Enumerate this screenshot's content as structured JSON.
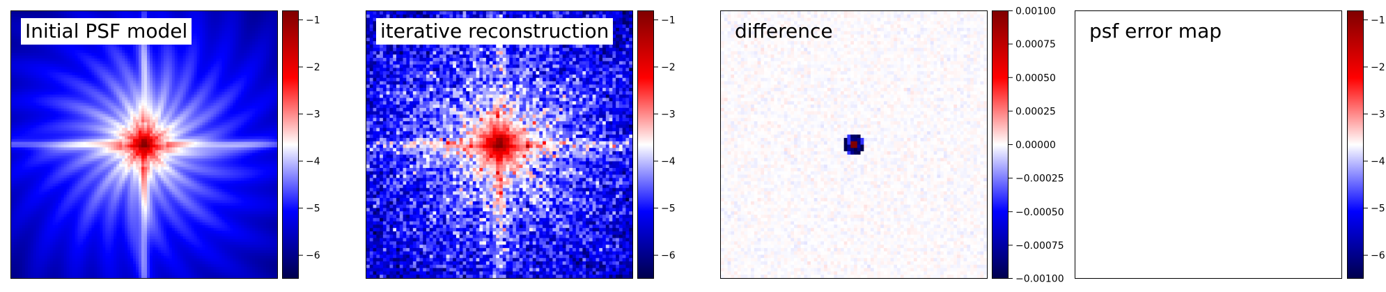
{
  "chart_data": [
    {
      "type": "heatmap",
      "title": "Initial PSF model",
      "pattern": "psf-model",
      "colormap": "seismic",
      "clim": [
        -6.5,
        -0.8
      ],
      "colorbar_ticks": [
        -1,
        -2,
        -3,
        -4,
        -5,
        -6
      ],
      "colorbar_tick_labels": [
        "−1",
        "−2",
        "−3",
        "−4",
        "−5",
        "−6"
      ]
    },
    {
      "type": "heatmap",
      "title": "iterative reconstruction",
      "pattern": "psf-noisy",
      "colormap": "seismic",
      "clim": [
        -6.5,
        -0.8
      ],
      "colorbar_ticks": [
        -1,
        -2,
        -3,
        -4,
        -5,
        -6
      ],
      "colorbar_tick_labels": [
        "−1",
        "−2",
        "−3",
        "−4",
        "−5",
        "−6"
      ]
    },
    {
      "type": "heatmap",
      "title": "difference",
      "pattern": "difference",
      "colormap": "seismic",
      "clim": [
        -0.001,
        0.001
      ],
      "colorbar_ticks": [
        0.001,
        0.00075,
        0.0005,
        0.00025,
        0,
        -0.00025,
        -0.0005,
        -0.00075,
        -0.001
      ],
      "colorbar_tick_labels": [
        "0.00100",
        "0.00075",
        "0.00050",
        "0.00025",
        "0.00000",
        "−0.00025",
        "−0.00050",
        "−0.00075",
        "−0.00100"
      ]
    },
    {
      "type": "heatmap",
      "title": "psf error map",
      "pattern": "empty",
      "colormap": "seismic",
      "clim": [
        -6.5,
        -0.8
      ],
      "colorbar_ticks": [
        -1,
        -2,
        -3,
        -4,
        -5,
        -6
      ],
      "colorbar_tick_labels": [
        "−1",
        "−2",
        "−3",
        "−4",
        "−5",
        "−6"
      ]
    }
  ]
}
